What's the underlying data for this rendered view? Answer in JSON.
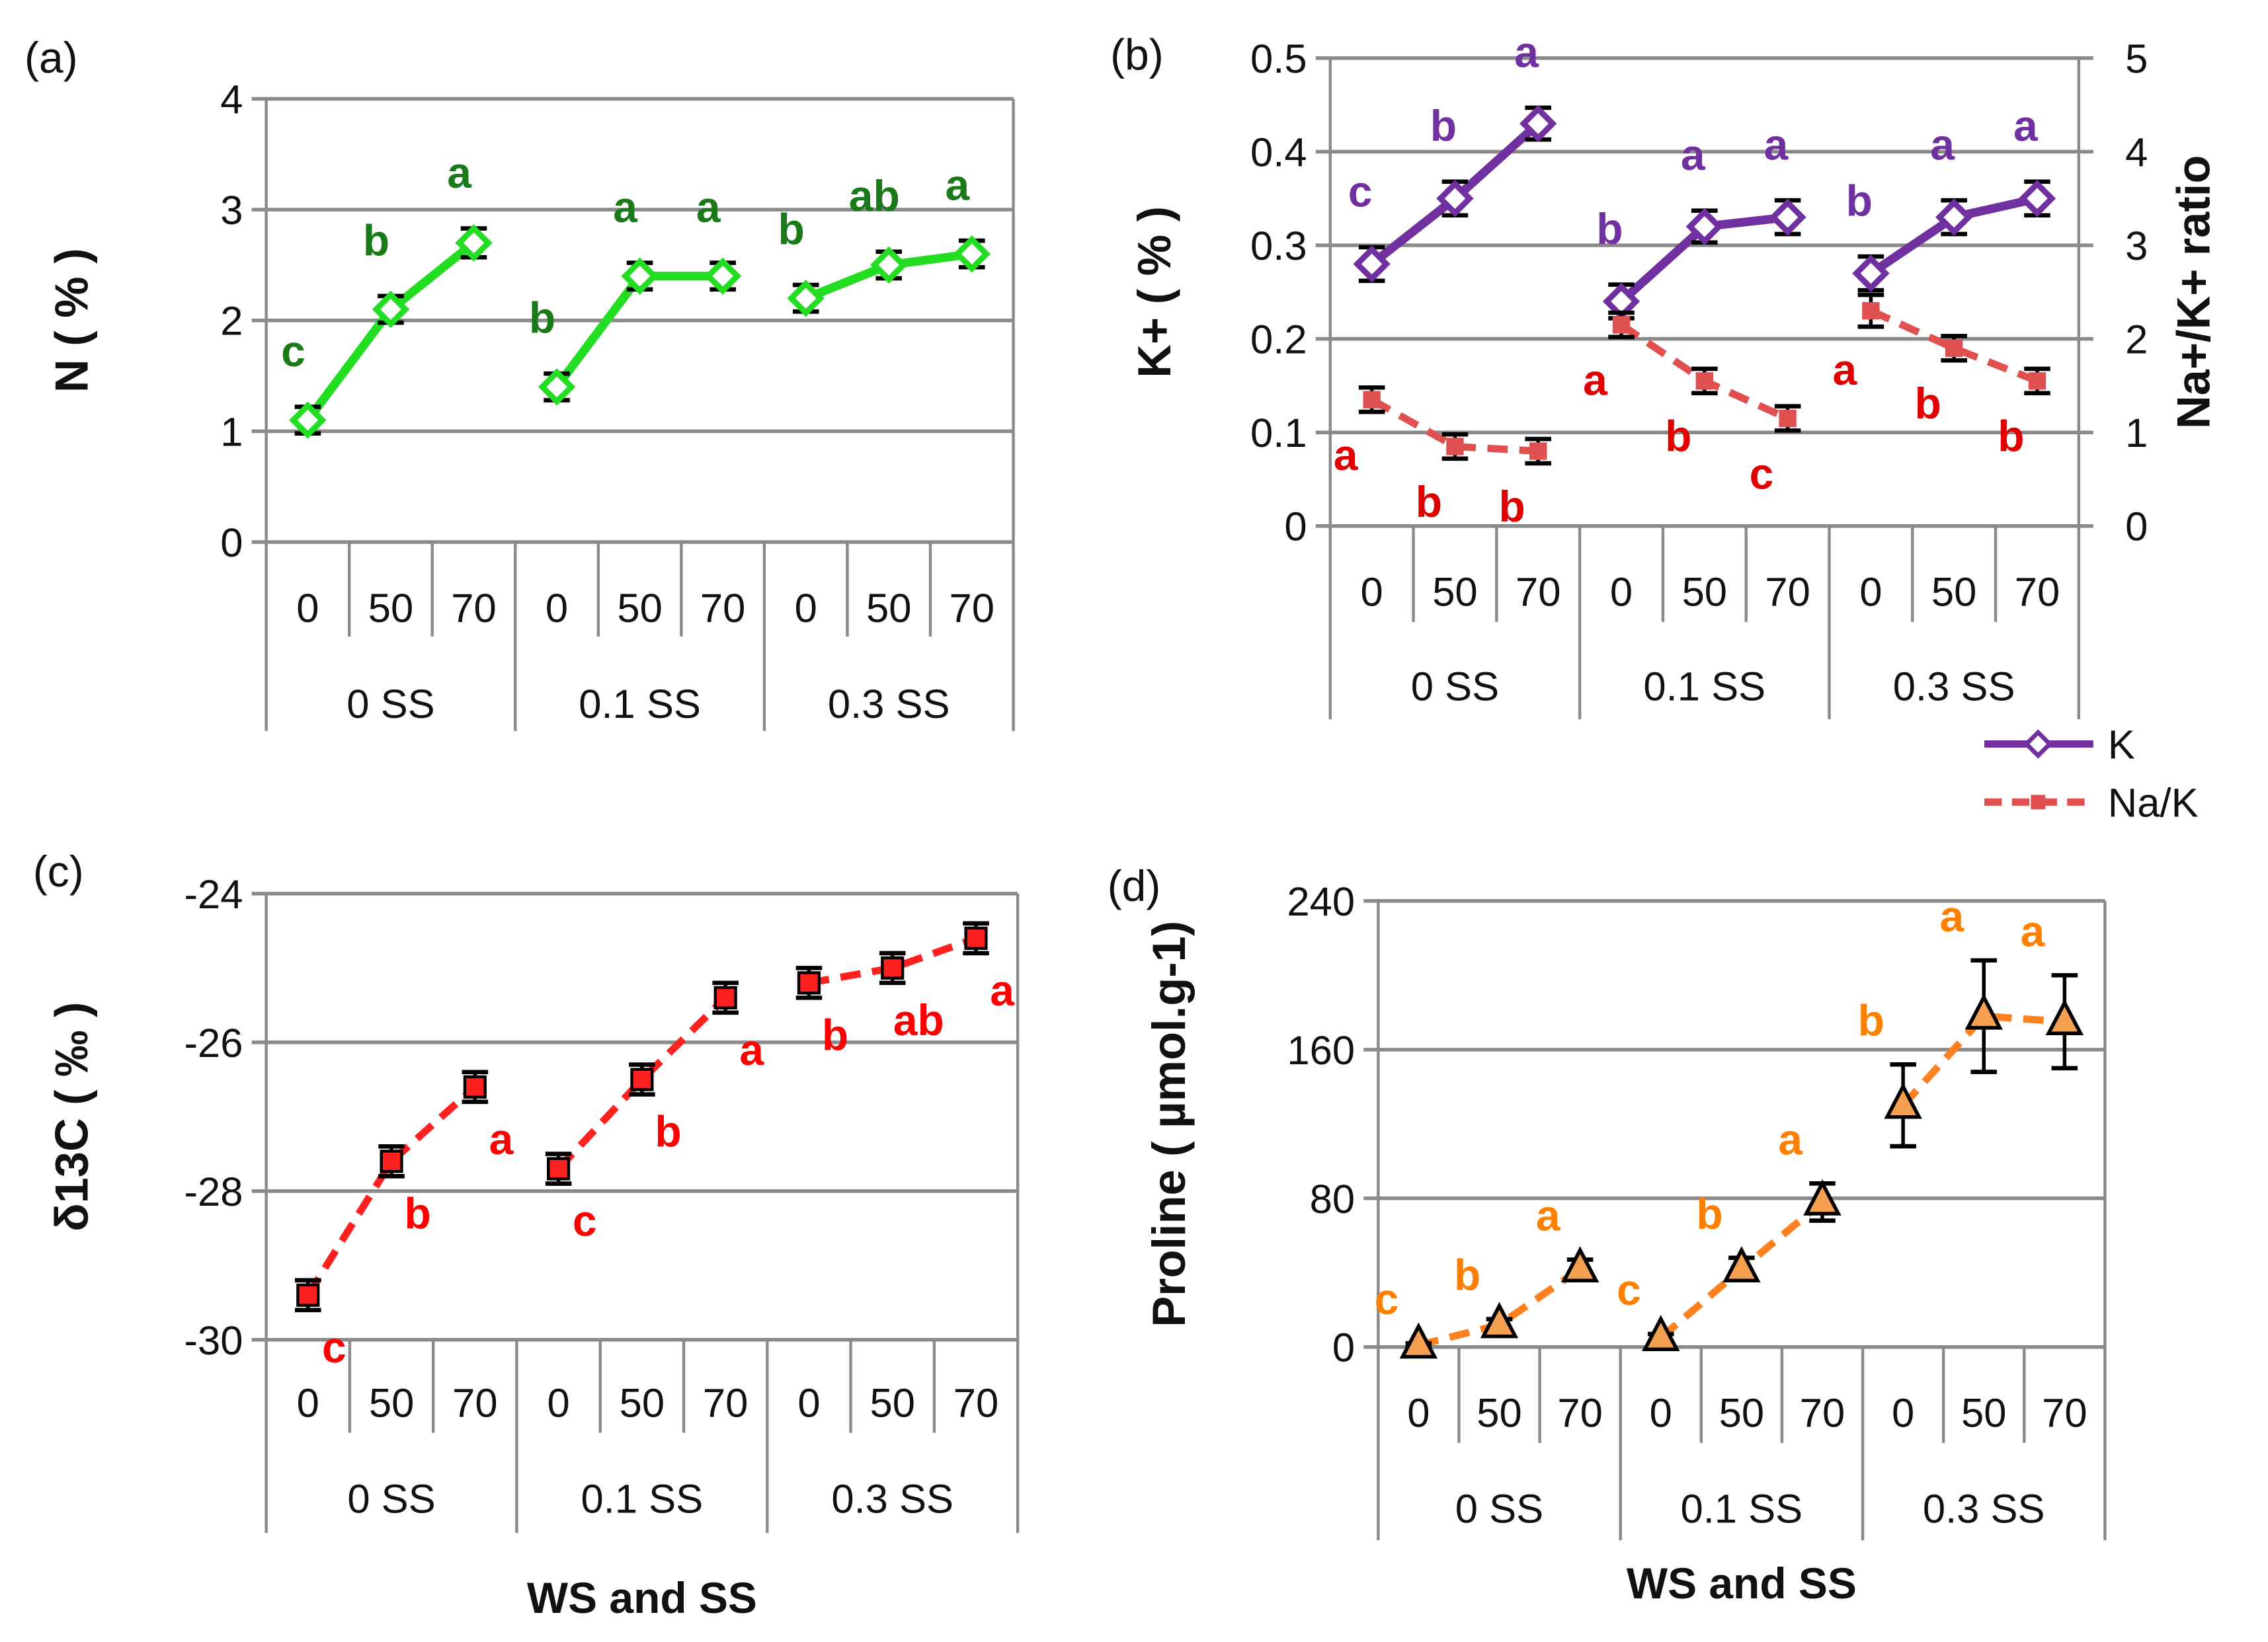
{
  "chart_data": [
    {
      "panel": "(a)",
      "type": "line",
      "ylabel": "N ( % )",
      "xlabel": "",
      "ylim": [
        0,
        4
      ],
      "yticks": [
        0,
        1,
        2,
        3,
        4
      ],
      "groups": [
        "0 SS",
        "0.1 SS",
        "0.3 SS"
      ],
      "categories": [
        "0",
        "50",
        "70",
        "0",
        "50",
        "70",
        "0",
        "50",
        "70"
      ],
      "series": [
        {
          "name": "N",
          "color": "#22dd22",
          "letter_color": "#1a7a1a",
          "marker": "diamond",
          "dashed": false,
          "values": [
            1.1,
            2.1,
            2.7,
            1.4,
            2.4,
            2.4,
            2.2,
            2.5,
            2.6
          ],
          "errors": [
            0.12,
            0.12,
            0.13,
            0.12,
            0.12,
            0.12,
            0.12,
            0.12,
            0.12
          ],
          "letters": [
            "c",
            "b",
            "a",
            "b",
            "a",
            "a",
            "b",
            "ab",
            "a"
          ]
        }
      ]
    },
    {
      "panel": "(b)",
      "type": "line",
      "ylabel": "K+ ( % )",
      "y2label": "Na+/K+ ratio",
      "xlabel": "",
      "ylim": [
        0,
        0.5
      ],
      "yticks": [
        0,
        0.1,
        0.2,
        0.3,
        0.4,
        0.5
      ],
      "y2lim": [
        0,
        5
      ],
      "y2ticks": [
        0,
        1,
        2,
        3,
        4,
        5
      ],
      "groups": [
        "0 SS",
        "0.1 SS",
        "0.3 SS"
      ],
      "categories": [
        "0",
        "50",
        "70",
        "0",
        "50",
        "70",
        "0",
        "50",
        "70"
      ],
      "legend": [
        "K",
        "Na/K"
      ],
      "series": [
        {
          "name": "K",
          "color": "#7030a0",
          "letter_color": "#7030a0",
          "marker": "diamond",
          "dashed": false,
          "axis": "left",
          "values": [
            0.28,
            0.35,
            0.43,
            0.24,
            0.32,
            0.33,
            0.27,
            0.33,
            0.35
          ],
          "errors": [
            0.018,
            0.018,
            0.017,
            0.018,
            0.017,
            0.018,
            0.018,
            0.018,
            0.018
          ],
          "letters": [
            "c",
            "b",
            "a",
            "b",
            "a",
            "a",
            "b",
            "a",
            "a"
          ]
        },
        {
          "name": "Na/K",
          "color": "#e05050",
          "letter_color": "#e00000",
          "marker": "square",
          "dashed": true,
          "axis": "right",
          "values": [
            1.35,
            0.85,
            0.8,
            2.15,
            1.55,
            1.15,
            2.3,
            1.9,
            1.55
          ],
          "errors": [
            0.13,
            0.13,
            0.13,
            0.13,
            0.13,
            0.13,
            0.17,
            0.13,
            0.13
          ],
          "letters": [
            "a",
            "b",
            "b",
            "a",
            "b",
            "c",
            "a",
            "b",
            "b"
          ]
        }
      ]
    },
    {
      "panel": "(c)",
      "type": "line",
      "ylabel": "δ13C ( ‰ )",
      "xlabel": "WS  and SS",
      "ylim": [
        -30,
        -24
      ],
      "yticks": [
        -30,
        -28,
        -26,
        -24
      ],
      "groups": [
        "0 SS",
        "0.1 SS",
        "0.3 SS"
      ],
      "categories": [
        "0",
        "50",
        "70",
        "0",
        "50",
        "70",
        "0",
        "50",
        "70"
      ],
      "series": [
        {
          "name": "δ13C",
          "color": "#ff2020",
          "letter_color": "#ff0000",
          "marker": "square",
          "dashed": true,
          "values": [
            -29.4,
            -27.6,
            -26.6,
            -27.7,
            -26.5,
            -25.4,
            -25.2,
            -25.0,
            -24.6
          ],
          "errors": [
            0.2,
            0.2,
            0.2,
            0.2,
            0.2,
            0.2,
            0.2,
            0.2,
            0.2
          ],
          "letters": [
            "c",
            "b",
            "a",
            "c",
            "b",
            "a",
            "b",
            "ab",
            "a"
          ]
        }
      ]
    },
    {
      "panel": "(d)",
      "type": "line",
      "ylabel": "Proline ( µmol.g-1)",
      "xlabel": "WS and SS",
      "ylim": [
        0,
        240
      ],
      "yticks": [
        0,
        80,
        160,
        240
      ],
      "groups": [
        "0 SS",
        "0.1 SS",
        "0.3 SS"
      ],
      "categories": [
        "0",
        "50",
        "70",
        "0",
        "50",
        "70",
        "0",
        "50",
        "70"
      ],
      "series": [
        {
          "name": "Proline",
          "color": "#ff8020",
          "letter_color": "#ff8000",
          "marker": "triangle",
          "dashed": true,
          "values": [
            1,
            12,
            42,
            5,
            42,
            78,
            130,
            178,
            175
          ],
          "errors": [
            1,
            3,
            5,
            2,
            6,
            10,
            22,
            30,
            25
          ],
          "letters": [
            "c",
            "b",
            "a",
            "c",
            "b",
            "a",
            "b",
            "a",
            "a"
          ]
        }
      ]
    }
  ]
}
